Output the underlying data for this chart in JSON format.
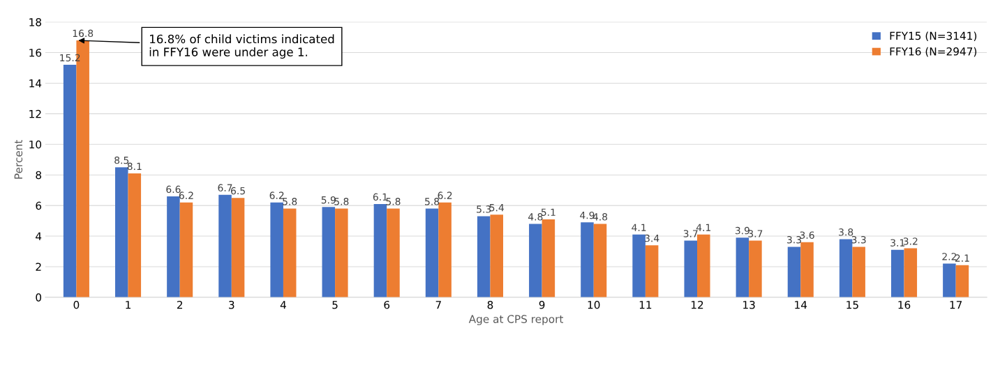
{
  "chart_data": {
    "type": "bar",
    "xlabel": "Age at CPS report",
    "ylabel": "Percent",
    "categories": [
      "0",
      "1",
      "2",
      "3",
      "4",
      "5",
      "6",
      "7",
      "8",
      "9",
      "10",
      "11",
      "12",
      "13",
      "14",
      "15",
      "16",
      "17"
    ],
    "series": [
      {
        "name": "FFY15 (N=3141)",
        "color": "#4472c4",
        "values": [
          15.2,
          8.5,
          6.6,
          6.7,
          6.2,
          5.9,
          6.1,
          5.8,
          5.3,
          4.8,
          4.9,
          4.1,
          3.7,
          3.9,
          3.3,
          3.8,
          3.1,
          2.2
        ]
      },
      {
        "name": "FFY16 (N=2947)",
        "color": "#ed7d31",
        "values": [
          16.8,
          8.1,
          6.2,
          6.5,
          5.8,
          5.8,
          5.8,
          6.2,
          5.4,
          5.1,
          4.8,
          3.4,
          4.1,
          3.7,
          3.6,
          3.3,
          3.2,
          2.1
        ]
      }
    ],
    "ylim": [
      0,
      18
    ],
    "yticks": [
      0,
      2,
      4,
      6,
      8,
      10,
      12,
      14,
      16,
      18
    ],
    "grid": "y",
    "legend": "top right",
    "data_labels": true,
    "annotations": [
      {
        "text": "16.8% of child victims indicated\nin FFY16 were under age 1.",
        "x": "0",
        "y": 16.8
      }
    ]
  }
}
